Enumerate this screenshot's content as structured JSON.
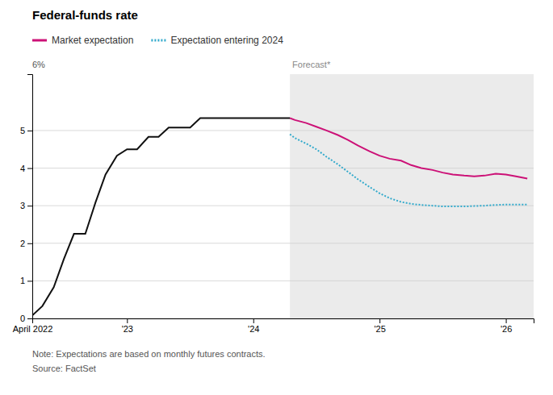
{
  "chart_data": {
    "type": "line",
    "title": "Federal-funds rate",
    "note": "Note: Expectations are based on monthly futures contracts.",
    "source": "Source: FactSet",
    "annotations": [
      {
        "text": "6%"
      },
      {
        "text": "Forecast*",
        "x": 2024.29,
        "color": "#ebebeb"
      }
    ],
    "series": [
      {
        "color": "#111111",
        "line_style": "solid",
        "x": [
          2022.25,
          2022.33,
          2022.42,
          2022.5,
          2022.58,
          2022.67,
          2022.75,
          2022.83,
          2022.92,
          2023.0,
          2023.08,
          2023.17,
          2023.25,
          2023.33,
          2023.42,
          2023.5,
          2023.58,
          2023.67,
          2023.75,
          2023.83,
          2023.92,
          2024.0,
          2024.08,
          2024.17,
          2024.29
        ],
        "values": [
          0.08,
          0.33,
          0.83,
          1.58,
          2.25,
          2.25,
          3.08,
          3.83,
          4.33,
          4.5,
          4.5,
          4.83,
          4.83,
          5.08,
          5.08,
          5.08,
          5.33,
          5.33,
          5.33,
          5.33,
          5.33,
          5.33,
          5.33,
          5.33,
          5.33
        ]
      },
      {
        "name": "Market expectation",
        "color": "#CC1177",
        "line_style": "solid",
        "x": [
          2024.29,
          2024.33,
          2024.42,
          2024.5,
          2024.58,
          2024.67,
          2024.75,
          2024.83,
          2024.92,
          2025.0,
          2025.08,
          2025.17,
          2025.25,
          2025.33,
          2025.42,
          2025.5,
          2025.58,
          2025.67,
          2025.75,
          2025.83,
          2025.92,
          2026.0,
          2026.08,
          2026.17
        ],
        "values": [
          5.33,
          5.28,
          5.2,
          5.1,
          5.0,
          4.88,
          4.75,
          4.6,
          4.45,
          4.33,
          4.25,
          4.2,
          4.08,
          4.0,
          3.95,
          3.88,
          3.83,
          3.8,
          3.78,
          3.8,
          3.85,
          3.83,
          3.78,
          3.72
        ]
      },
      {
        "name": "Expectation entering 2024",
        "color": "#33AACC",
        "line_style": "dotted",
        "x": [
          2024.29,
          2024.33,
          2024.42,
          2024.5,
          2024.58,
          2024.67,
          2024.75,
          2024.83,
          2024.92,
          2025.0,
          2025.08,
          2025.17,
          2025.25,
          2025.33,
          2025.42,
          2025.5,
          2025.58,
          2025.67,
          2025.75,
          2025.83,
          2025.92,
          2026.0,
          2026.08,
          2026.17
        ],
        "values": [
          4.9,
          4.8,
          4.65,
          4.5,
          4.3,
          4.1,
          3.9,
          3.7,
          3.5,
          3.33,
          3.2,
          3.1,
          3.05,
          3.02,
          3.0,
          2.98,
          2.98,
          2.98,
          2.99,
          3.0,
          3.02,
          3.03,
          3.03,
          3.03
        ]
      }
    ],
    "xlim": [
      2022.25,
      2026.22
    ],
    "ylim": [
      0,
      6.5
    ],
    "yticks": [
      0,
      1,
      2,
      3,
      4,
      5
    ],
    "xticks": [
      {
        "value": 2022.25,
        "label": "April 2022"
      },
      {
        "value": 2023.0,
        "label": "'23"
      },
      {
        "value": 2024.0,
        "label": "'24"
      },
      {
        "value": 2025.0,
        "label": "'25"
      },
      {
        "value": 2026.0,
        "label": "'26"
      }
    ],
    "grid": true
  }
}
